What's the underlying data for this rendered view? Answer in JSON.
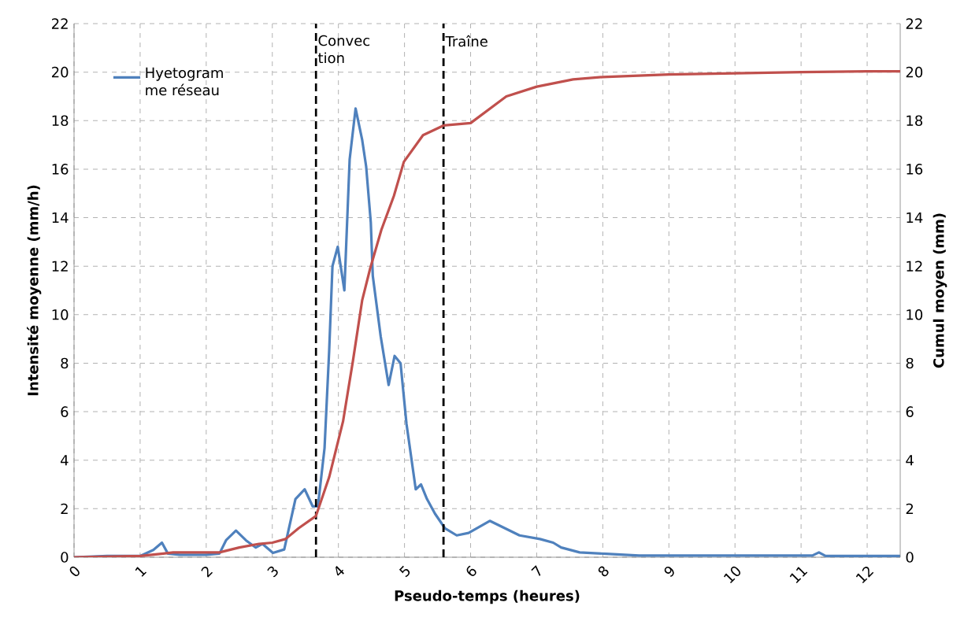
{
  "chart_data": {
    "type": "line",
    "xlabel": "Pseudo-temps (heures)",
    "ylabel": "Intensité moyenne  (mm/h)",
    "y2label": "Cumul moyen (mm)",
    "xlim": [
      0,
      12.5
    ],
    "xticks": [
      0,
      1,
      2,
      3,
      4,
      5,
      6,
      7,
      8,
      9,
      10,
      11,
      12
    ],
    "ylim": [
      0,
      22
    ],
    "yticks": [
      0,
      2,
      4,
      6,
      8,
      10,
      12,
      14,
      16,
      18,
      20,
      22
    ],
    "y2lim": [
      0,
      22
    ],
    "y2ticks": [
      0,
      2,
      4,
      6,
      8,
      10,
      12,
      14,
      16,
      18,
      20,
      22
    ],
    "grid": true,
    "legend": "top left",
    "series": [
      {
        "name": "Hyetogram me réseau",
        "color": "#4f81bd",
        "x": [
          0,
          0.5,
          1.0,
          1.2,
          1.33,
          1.42,
          1.6,
          2.0,
          2.2,
          2.3,
          2.45,
          2.6,
          2.75,
          2.85,
          3.01,
          3.18,
          3.35,
          3.49,
          3.61,
          3.69,
          3.79,
          3.86,
          3.91,
          3.99,
          4.09,
          4.17,
          4.26,
          4.36,
          4.42,
          4.49,
          4.52,
          4.64,
          4.76,
          4.85,
          4.94,
          5.03,
          5.17,
          5.25,
          5.34,
          5.46,
          5.61,
          5.79,
          5.97,
          6.29,
          6.74,
          7.05,
          7.25,
          7.37,
          7.65,
          8.05,
          8.55,
          11.17,
          11.27,
          11.37,
          12.5
        ],
        "values": [
          0,
          0.05,
          0.05,
          0.3,
          0.6,
          0.15,
          0.1,
          0.1,
          0.15,
          0.7,
          1.1,
          0.7,
          0.4,
          0.55,
          0.18,
          0.32,
          2.4,
          2.8,
          2.1,
          2.1,
          4.5,
          8.5,
          12.0,
          12.8,
          11.0,
          16.4,
          18.5,
          17.2,
          16.1,
          13.8,
          11.6,
          9.1,
          7.1,
          8.3,
          8.0,
          5.5,
          2.8,
          3.0,
          2.4,
          1.8,
          1.2,
          0.9,
          1.0,
          1.5,
          0.9,
          0.75,
          0.6,
          0.4,
          0.2,
          0.14,
          0.07,
          0.07,
          0.2,
          0.05,
          0.05
        ]
      },
      {
        "color": "#c0504d",
        "axis": "y2",
        "x": [
          0,
          1,
          1.35,
          1.5,
          2.2,
          2.5,
          2.8,
          3.0,
          3.2,
          3.4,
          3.66,
          3.86,
          4.07,
          4.22,
          4.36,
          4.48,
          4.65,
          4.84,
          4.99,
          5.28,
          5.59,
          6.0,
          6.54,
          7.0,
          7.55,
          8.0,
          9.0,
          10.0,
          11.0,
          12.0,
          12.5
        ],
        "values": [
          0,
          0.05,
          0.15,
          0.2,
          0.2,
          0.4,
          0.55,
          0.6,
          0.75,
          1.2,
          1.7,
          3.3,
          5.6,
          8.1,
          10.6,
          11.9,
          13.5,
          14.9,
          16.3,
          17.4,
          17.8,
          17.9,
          19.0,
          19.4,
          19.7,
          19.8,
          19.9,
          19.95,
          20.0,
          20.03,
          20.03
        ]
      }
    ],
    "ref_lines": [
      {
        "axis": "x",
        "value": 3.66,
        "label": "Convec tion",
        "color": "#000000",
        "line_style": "dashed"
      },
      {
        "axis": "x",
        "value": 5.59,
        "label": "Traîne",
        "color": "#000000",
        "line_style": "dashed"
      }
    ]
  }
}
